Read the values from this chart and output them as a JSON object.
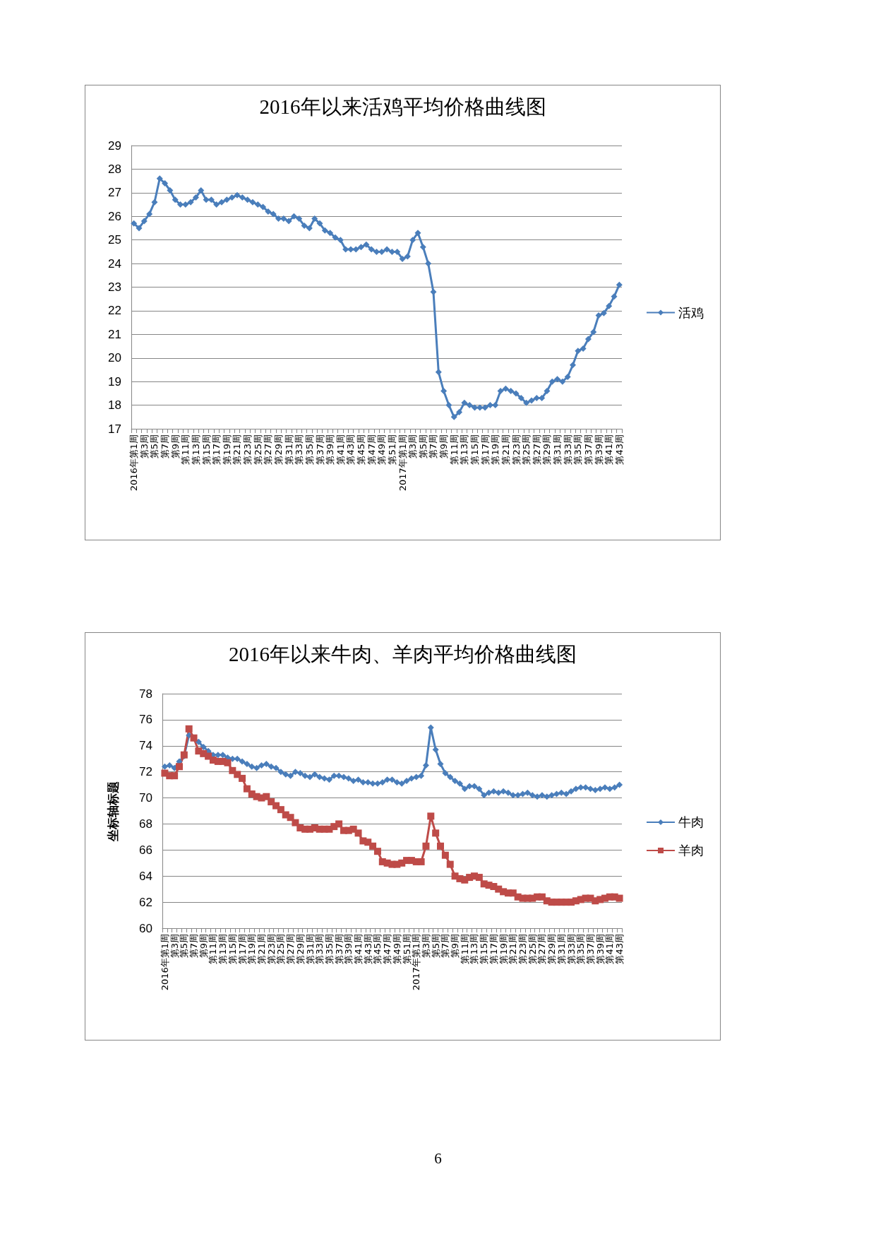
{
  "chart_data": [
    {
      "type": "line",
      "title": "2016年以来活鸡平均价格曲线图",
      "categories": [
        "2016年第1周",
        null,
        "第3周",
        null,
        "第5周",
        null,
        "第7周",
        null,
        "第9周",
        null,
        "第11周",
        null,
        "第13周",
        null,
        "第15周",
        null,
        "第17周",
        null,
        "第19周",
        null,
        "第21周",
        null,
        "第23周",
        null,
        "第25周",
        null,
        "第27周",
        null,
        "第29周",
        null,
        "第31周",
        null,
        "第33周",
        null,
        "第35周",
        null,
        "第37周",
        null,
        "第39周",
        null,
        "第41周",
        null,
        "第43周",
        null,
        "第45周",
        null,
        "第47周",
        null,
        "第49周",
        null,
        "第51周",
        null,
        "2017年第1周",
        null,
        "第3周",
        null,
        "第5周",
        null,
        "第7周",
        null,
        "第9周",
        null,
        "第11周",
        null,
        "第13周",
        null,
        "第15周",
        null,
        "第17周",
        null,
        "第19周",
        null,
        "第21周",
        null,
        "第23周",
        null,
        "第25周",
        null,
        "第27周",
        null,
        "第29周",
        null,
        "第31周",
        null,
        "第33周",
        null,
        "第35周",
        null,
        "第37周",
        null,
        "第39周",
        null,
        "第41周",
        null,
        "第43周"
      ],
      "series": [
        {
          "name": "活鸡",
          "color": "#4a7ebb",
          "marker": "diamond",
          "values": [
            25.7,
            25.5,
            25.8,
            26.1,
            26.6,
            27.6,
            27.4,
            27.1,
            26.7,
            26.5,
            26.5,
            26.6,
            26.8,
            27.1,
            26.7,
            26.7,
            26.5,
            26.6,
            26.7,
            26.8,
            26.9,
            26.8,
            26.7,
            26.6,
            26.5,
            26.4,
            26.2,
            26.1,
            25.9,
            25.9,
            25.8,
            26.0,
            25.9,
            25.6,
            25.5,
            25.9,
            25.7,
            25.4,
            25.3,
            25.1,
            25.0,
            24.6,
            24.6,
            24.6,
            24.7,
            24.8,
            24.6,
            24.5,
            24.5,
            24.6,
            24.5,
            24.5,
            24.2,
            24.3,
            25.0,
            25.3,
            24.7,
            24.0,
            22.8,
            19.4,
            18.6,
            18.0,
            17.5,
            17.7,
            18.1,
            18.0,
            17.9,
            17.9,
            17.9,
            18.0,
            18.0,
            18.6,
            18.7,
            18.6,
            18.5,
            18.3,
            18.1,
            18.2,
            18.3,
            18.3,
            18.6,
            19.0,
            19.1,
            19.0,
            19.2,
            19.7,
            20.3,
            20.4,
            20.8,
            21.1,
            21.8,
            21.9,
            22.2,
            22.6,
            23.1
          ]
        }
      ],
      "ylim": [
        17,
        29
      ],
      "yticks": [
        17,
        18,
        19,
        20,
        21,
        22,
        23,
        24,
        25,
        26,
        27,
        28,
        29
      ],
      "grid": "y",
      "legend": "right"
    },
    {
      "type": "line",
      "title": "2016年以来牛肉、羊肉平均价格曲线图",
      "ylabel": "坐标轴标题",
      "categories": [
        "2016年第1周",
        null,
        "第3周",
        null,
        "第5周",
        null,
        "第7周",
        null,
        "第9周",
        null,
        "第11周",
        null,
        "第13周",
        null,
        "第15周",
        null,
        "第17周",
        null,
        "第19周",
        null,
        "第21周",
        null,
        "第23周",
        null,
        "第25周",
        null,
        "第27周",
        null,
        "第29周",
        null,
        "第31周",
        null,
        "第33周",
        null,
        "第35周",
        null,
        "第37周",
        null,
        "第39周",
        null,
        "第41周",
        null,
        "第43周",
        null,
        "第45周",
        null,
        "第47周",
        null,
        "第49周",
        null,
        "第51周",
        null,
        "2017年第1周",
        null,
        "第3周",
        null,
        "第5周",
        null,
        "第7周",
        null,
        "第9周",
        null,
        "第11周",
        null,
        "第13周",
        null,
        "第15周",
        null,
        "第17周",
        null,
        "第19周",
        null,
        "第21周",
        null,
        "第23周",
        null,
        "第25周",
        null,
        "第27周",
        null,
        "第29周",
        null,
        "第31周",
        null,
        "第33周",
        null,
        "第35周",
        null,
        "第37周",
        null,
        "第39周",
        null,
        "第41周",
        null,
        "第43周"
      ],
      "series": [
        {
          "name": "牛肉",
          "color": "#4a7ebb",
          "marker": "diamond",
          "values": [
            72.4,
            72.5,
            72.3,
            72.8,
            73.2,
            74.8,
            74.6,
            74.3,
            73.9,
            73.6,
            73.3,
            73.3,
            73.3,
            73.1,
            73.0,
            73.0,
            72.8,
            72.6,
            72.4,
            72.3,
            72.5,
            72.6,
            72.4,
            72.3,
            72.0,
            71.8,
            71.7,
            72.0,
            71.9,
            71.7,
            71.6,
            71.8,
            71.6,
            71.5,
            71.4,
            71.7,
            71.7,
            71.6,
            71.5,
            71.3,
            71.4,
            71.2,
            71.2,
            71.1,
            71.1,
            71.2,
            71.4,
            71.4,
            71.2,
            71.1,
            71.3,
            71.5,
            71.6,
            71.7,
            72.5,
            75.4,
            73.7,
            72.6,
            71.9,
            71.6,
            71.3,
            71.1,
            70.7,
            70.9,
            70.9,
            70.7,
            70.2,
            70.4,
            70.5,
            70.4,
            70.5,
            70.4,
            70.2,
            70.2,
            70.3,
            70.4,
            70.2,
            70.1,
            70.2,
            70.1,
            70.2,
            70.3,
            70.4,
            70.3,
            70.5,
            70.7,
            70.8,
            70.8,
            70.7,
            70.6,
            70.7,
            70.8,
            70.7,
            70.8,
            71.0
          ]
        },
        {
          "name": "羊肉",
          "color": "#be4b48",
          "marker": "square",
          "values": [
            71.9,
            71.7,
            71.7,
            72.4,
            73.3,
            75.3,
            74.6,
            73.6,
            73.4,
            73.2,
            72.9,
            72.8,
            72.8,
            72.7,
            72.1,
            71.8,
            71.5,
            70.7,
            70.3,
            70.1,
            70.0,
            70.1,
            69.7,
            69.4,
            69.1,
            68.7,
            68.5,
            68.1,
            67.7,
            67.6,
            67.6,
            67.7,
            67.6,
            67.6,
            67.6,
            67.8,
            68.0,
            67.5,
            67.5,
            67.6,
            67.3,
            66.7,
            66.6,
            66.3,
            65.9,
            65.1,
            65.0,
            64.9,
            64.9,
            65.0,
            65.2,
            65.2,
            65.1,
            65.1,
            66.3,
            68.6,
            67.3,
            66.3,
            65.6,
            64.9,
            64.0,
            63.8,
            63.7,
            63.9,
            64.0,
            63.9,
            63.4,
            63.3,
            63.2,
            63.0,
            62.8,
            62.7,
            62.7,
            62.4,
            62.3,
            62.3,
            62.3,
            62.4,
            62.4,
            62.1,
            62.0,
            62.0,
            62.0,
            62.0,
            62.0,
            62.1,
            62.2,
            62.3,
            62.3,
            62.1,
            62.2,
            62.3,
            62.4,
            62.4,
            62.3
          ]
        }
      ],
      "ylim": [
        60,
        78
      ],
      "yticks": [
        60,
        62,
        64,
        66,
        68,
        70,
        72,
        74,
        76,
        78
      ],
      "grid": "y",
      "legend": "right",
      "annotations": [
        "6"
      ]
    }
  ]
}
